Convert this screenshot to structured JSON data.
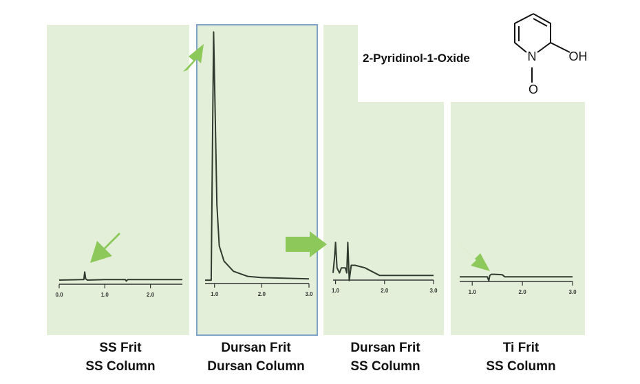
{
  "title": "2-Pyridinol-1-Oxide",
  "molecule": {
    "n": "N",
    "oh": "OH",
    "o": "O"
  },
  "chart_data": [
    {
      "type": "line",
      "caption": [
        "SS Frit",
        "SS Column"
      ],
      "color": "#2f3b2f",
      "x": [
        0,
        0.5,
        0.54,
        0.56,
        0.58,
        0.62,
        1.0,
        1.45,
        1.47,
        1.5,
        2.0,
        2.7
      ],
      "values": [
        0.8,
        1.0,
        1.0,
        4,
        1.3,
        0.8,
        1.0,
        1.0,
        0.4,
        1.0,
        1.0,
        1.0
      ],
      "xlim": [
        0,
        2.7
      ],
      "ylim": [
        0,
        100
      ],
      "xticks": [
        {
          "value": 0,
          "label": "0.0"
        },
        {
          "value": 1,
          "label": "1.0"
        },
        {
          "value": 2,
          "label": "2.0"
        }
      ]
    },
    {
      "type": "line",
      "caption": [
        "Dursan Frit",
        "Dursan Column"
      ],
      "color": "#2f3b2f",
      "x": [
        0.8,
        0.93,
        0.96,
        0.98,
        1.0,
        1.05,
        1.1,
        1.2,
        1.4,
        1.7,
        2.0,
        3.0
      ],
      "values": [
        0.5,
        0.5,
        60,
        98,
        80,
        30,
        14,
        8,
        4,
        2,
        1.5,
        1
      ],
      "xlim": [
        0.8,
        3.0
      ],
      "ylim": [
        0,
        100
      ],
      "xticks": [
        {
          "value": 1,
          "label": "1.0"
        },
        {
          "value": 2,
          "label": "2.0"
        },
        {
          "value": 3,
          "label": "3.0"
        }
      ]
    },
    {
      "type": "line",
      "caption": [
        "Dursan Frit",
        "SS Column"
      ],
      "color": "#2f3b2f",
      "x": [
        0.95,
        0.98,
        1.0,
        1.03,
        1.08,
        1.12,
        1.2,
        1.23,
        1.25,
        1.28,
        1.32,
        1.4,
        1.6,
        1.9,
        2.0,
        3.0
      ],
      "values": [
        2,
        8,
        14,
        4,
        2,
        4,
        4,
        2,
        14,
        -1,
        5,
        5,
        4,
        1,
        1,
        1
      ],
      "xlim": [
        0.95,
        3.0
      ],
      "ylim": [
        0,
        100
      ],
      "xticks": [
        {
          "value": 1,
          "label": "1.0"
        },
        {
          "value": 2,
          "label": "2.0"
        },
        {
          "value": 3,
          "label": "3.0"
        }
      ]
    },
    {
      "type": "line",
      "caption": [
        "Ti Frit",
        "SS Column"
      ],
      "color": "#2f3b2f",
      "x": [
        0.75,
        1.0,
        1.3,
        1.33,
        1.35,
        1.38,
        1.45,
        1.6,
        1.65,
        2.0,
        3.0
      ],
      "values": [
        1,
        1,
        1,
        -0.5,
        1.5,
        2,
        2,
        1.8,
        1,
        1,
        1
      ],
      "xlim": [
        0.75,
        3.0
      ],
      "ylim": [
        0,
        100
      ],
      "xticks": [
        {
          "value": 1,
          "label": "1.0"
        },
        {
          "value": 2,
          "label": "2.0"
        },
        {
          "value": 3,
          "label": "3.0"
        }
      ]
    }
  ]
}
